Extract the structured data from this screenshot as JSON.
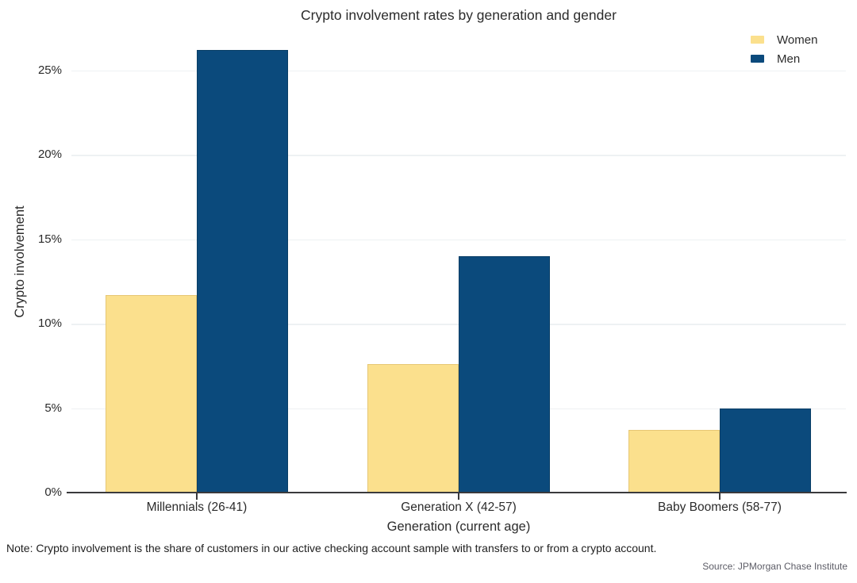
{
  "chart_data": {
    "type": "bar",
    "title": "Crypto involvement rates by generation and gender",
    "xlabel": "Generation (current age)",
    "ylabel": "Crypto involvement",
    "categories": [
      "Millennials (26-41)",
      "Generation X (42-57)",
      "Baby Boomers (58-77)"
    ],
    "series": [
      {
        "name": "Women",
        "color": "#FBE08D",
        "edge_color": "#E6C775",
        "values": [
          11.7,
          7.6,
          3.7
        ]
      },
      {
        "name": "Men",
        "color": "#0B4A7C",
        "edge_color": "#093E66",
        "values": [
          26.2,
          14.0,
          5.0
        ]
      }
    ],
    "unit": "%",
    "y_ticks": [
      0,
      5,
      10,
      15,
      20,
      25
    ],
    "y_tick_labels": [
      "0%",
      "5%",
      "10%",
      "15%",
      "20%",
      "25%"
    ],
    "ylim": [
      0,
      27.3
    ],
    "grid": "horizontal",
    "legend_position": "top-right",
    "colors": {
      "axis": "#3A3A3C",
      "gridline": "#EEF1F3",
      "text": "#2B2B2B",
      "source_text": "#5C5C66"
    }
  },
  "note": "Note: Crypto involvement is the share of customers in our active checking account sample with transfers to or from a crypto account.",
  "source": "Source: JPMorgan Chase Institute"
}
